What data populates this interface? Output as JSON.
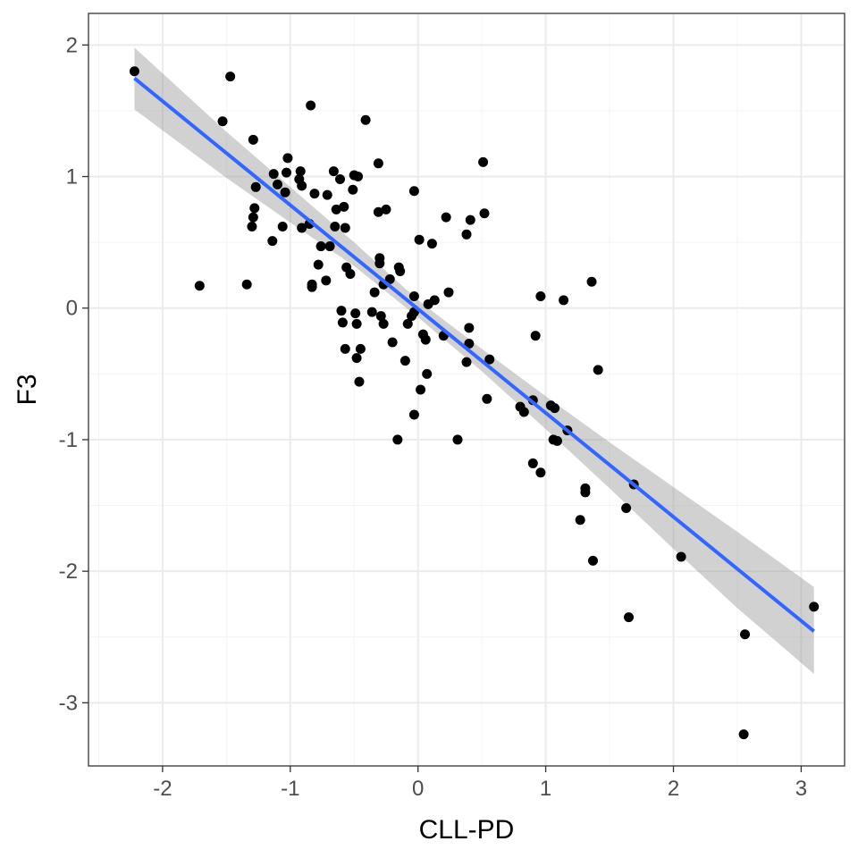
{
  "chart_data": {
    "type": "scatter",
    "title": "",
    "xlabel": "CLL-PD",
    "ylabel": "F3",
    "xlim": [
      -2.58,
      3.34
    ],
    "ylim": [
      -3.48,
      2.24
    ],
    "x_ticks": [
      -2,
      -1,
      0,
      1,
      2,
      3
    ],
    "y_ticks": [
      -3,
      -2,
      -1,
      0,
      1,
      2
    ],
    "x_tick_labels": [
      "-2",
      "-1",
      "0",
      "1",
      "2",
      "3"
    ],
    "y_tick_labels": [
      "-3",
      "-2",
      "-1",
      "0",
      "1",
      "2"
    ],
    "grid": true,
    "legend": "none",
    "points": [
      [
        -2.22,
        1.8
      ],
      [
        -1.47,
        1.76
      ],
      [
        -1.53,
        1.42
      ],
      [
        -0.84,
        1.54
      ],
      [
        -0.41,
        1.43
      ],
      [
        -1.29,
        1.28
      ],
      [
        -1.02,
        1.14
      ],
      [
        -1.13,
        1.02
      ],
      [
        -1.03,
        1.03
      ],
      [
        -0.92,
        1.04
      ],
      [
        -0.93,
        0.98
      ],
      [
        -0.91,
        0.93
      ],
      [
        -1.27,
        0.92
      ],
      [
        -1.1,
        0.94
      ],
      [
        -1.04,
        0.88
      ],
      [
        -0.66,
        1.04
      ],
      [
        -0.47,
        1.0
      ],
      [
        -0.5,
        1.01
      ],
      [
        -0.61,
        0.98
      ],
      [
        -0.81,
        0.87
      ],
      [
        -0.71,
        0.86
      ],
      [
        -0.51,
        0.9
      ],
      [
        -0.31,
        1.1
      ],
      [
        -0.03,
        0.89
      ],
      [
        0.51,
        1.11
      ],
      [
        0.52,
        0.72
      ],
      [
        0.22,
        0.69
      ],
      [
        0.41,
        0.67
      ],
      [
        0.38,
        0.56
      ],
      [
        -0.25,
        0.75
      ],
      [
        -0.31,
        0.73
      ],
      [
        -0.64,
        0.75
      ],
      [
        -0.58,
        0.77
      ],
      [
        -0.57,
        0.61
      ],
      [
        -0.65,
        0.62
      ],
      [
        -1.28,
        0.76
      ],
      [
        -1.29,
        0.69
      ],
      [
        -1.3,
        0.62
      ],
      [
        -1.06,
        0.62
      ],
      [
        -1.14,
        0.51
      ],
      [
        -0.85,
        0.64
      ],
      [
        -0.91,
        0.61
      ],
      [
        -0.76,
        0.47
      ],
      [
        -0.69,
        0.47
      ],
      [
        0.01,
        0.52
      ],
      [
        0.11,
        0.49
      ],
      [
        -0.78,
        0.33
      ],
      [
        -0.56,
        0.31
      ],
      [
        -0.53,
        0.26
      ],
      [
        -0.72,
        0.21
      ],
      [
        -0.83,
        0.18
      ],
      [
        -0.83,
        0.16
      ],
      [
        -1.71,
        0.17
      ],
      [
        -1.34,
        0.18
      ],
      [
        -0.3,
        0.38
      ],
      [
        -0.3,
        0.34
      ],
      [
        -0.27,
        0.18
      ],
      [
        -0.15,
        0.31
      ],
      [
        -0.14,
        0.28
      ],
      [
        -0.22,
        0.22
      ],
      [
        -0.34,
        0.12
      ],
      [
        -0.03,
        0.09
      ],
      [
        0.13,
        0.06
      ],
      [
        0.24,
        0.12
      ],
      [
        0.08,
        0.03
      ],
      [
        -0.03,
        -0.03
      ],
      [
        -0.05,
        -0.06
      ],
      [
        -0.6,
        -0.02
      ],
      [
        -0.49,
        -0.04
      ],
      [
        -0.29,
        -0.06
      ],
      [
        -0.36,
        -0.03
      ],
      [
        -0.59,
        -0.11
      ],
      [
        -0.48,
        -0.12
      ],
      [
        -0.27,
        -0.12
      ],
      [
        -0.08,
        -0.12
      ],
      [
        -0.57,
        -0.31
      ],
      [
        -0.45,
        -0.31
      ],
      [
        -0.48,
        -0.38
      ],
      [
        -0.2,
        -0.26
      ],
      [
        0.04,
        -0.2
      ],
      [
        0.06,
        -0.24
      ],
      [
        0.2,
        -0.21
      ],
      [
        0.4,
        -0.15
      ],
      [
        0.4,
        -0.27
      ],
      [
        0.38,
        -0.41
      ],
      [
        0.56,
        -0.39
      ],
      [
        -0.1,
        -0.4
      ],
      [
        0.07,
        -0.5
      ],
      [
        -0.46,
        -0.56
      ],
      [
        0.02,
        -0.62
      ],
      [
        -0.03,
        -0.81
      ],
      [
        -0.16,
        -1.0
      ],
      [
        0.31,
        -1.0
      ],
      [
        0.54,
        -0.69
      ],
      [
        1.36,
        0.2
      ],
      [
        1.14,
        0.06
      ],
      [
        0.96,
        0.09
      ],
      [
        0.92,
        -0.21
      ],
      [
        1.41,
        -0.47
      ],
      [
        0.9,
        -0.7
      ],
      [
        0.8,
        -0.75
      ],
      [
        0.83,
        -0.79
      ],
      [
        1.04,
        -0.74
      ],
      [
        1.07,
        -0.76
      ],
      [
        1.17,
        -0.93
      ],
      [
        1.06,
        -1.0
      ],
      [
        1.09,
        -1.01
      ],
      [
        0.9,
        -1.18
      ],
      [
        0.96,
        -1.25
      ],
      [
        1.31,
        -1.37
      ],
      [
        1.31,
        -1.4
      ],
      [
        1.27,
        -1.61
      ],
      [
        1.63,
        -1.52
      ],
      [
        1.69,
        -1.34
      ],
      [
        1.37,
        -1.92
      ],
      [
        2.06,
        -1.89
      ],
      [
        1.65,
        -2.35
      ],
      [
        3.1,
        -2.27
      ],
      [
        2.56,
        -2.48
      ],
      [
        2.55,
        -3.24
      ]
    ],
    "fit": {
      "method": "lm",
      "slope": -0.79,
      "intercept": -0.007,
      "x_range": [
        -2.22,
        3.1
      ],
      "ci_band": [
        [
          -2.22,
          1.51,
          1.98
        ],
        [
          -1.5,
          0.99,
          1.34
        ],
        [
          -1.0,
          0.65,
          0.92
        ],
        [
          -0.5,
          0.32,
          0.5
        ],
        [
          0.0,
          -0.07,
          0.06
        ],
        [
          0.5,
          -0.48,
          -0.31
        ],
        [
          1.0,
          -0.92,
          -0.67
        ],
        [
          1.5,
          -1.37,
          -1.02
        ],
        [
          2.0,
          -1.83,
          -1.36
        ],
        [
          2.5,
          -2.28,
          -1.7
        ],
        [
          3.1,
          -2.78,
          -2.12
        ]
      ]
    },
    "colors": {
      "points": "#000000",
      "fit_line": "#3366ff",
      "ci_band": "#999999",
      "grid_major": "#ebebeb",
      "grid_minor": "#f4f4f4",
      "panel_border": "#333333"
    }
  }
}
